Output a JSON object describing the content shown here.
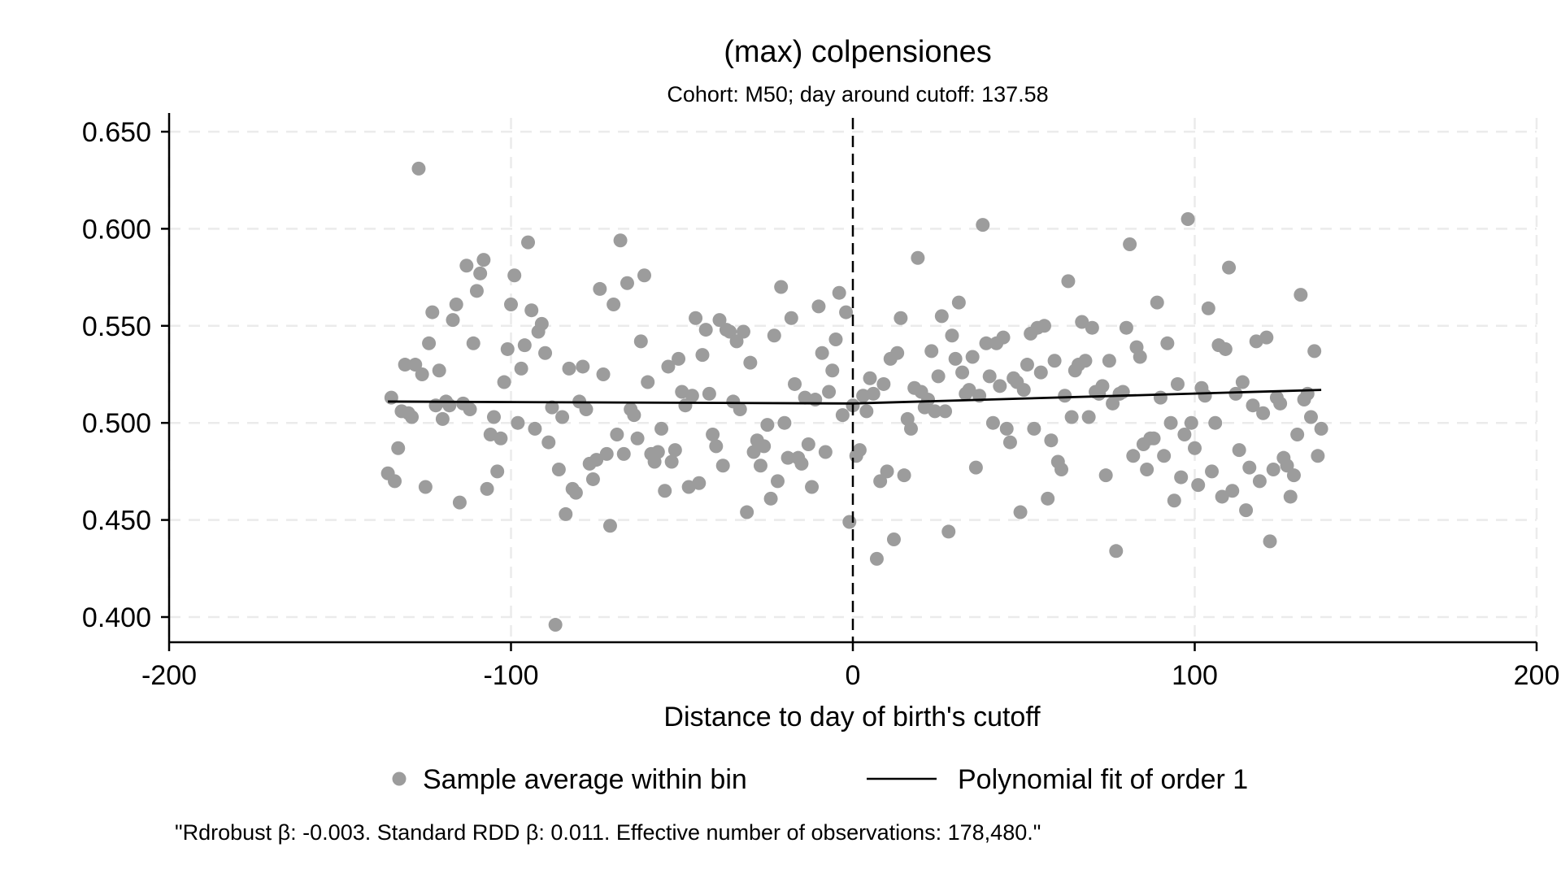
{
  "chart_data": {
    "type": "scatter",
    "title": "(max) colpensiones",
    "subtitle": "Cohort: M50; day around cutoff: 137.58",
    "xlabel": "Distance to day of birth's cutoff",
    "ylabel": "",
    "xlim": [
      -200,
      200
    ],
    "ylim": [
      0.4,
      0.65
    ],
    "x_ticks": [
      -200,
      -100,
      0,
      100,
      200
    ],
    "x_tick_labels": [
      "-200",
      "-100",
      "0",
      "100",
      "200"
    ],
    "y_ticks": [
      0.4,
      0.45,
      0.5,
      0.55,
      0.6,
      0.65
    ],
    "y_tick_labels": [
      "0.400",
      "0.450",
      "0.500",
      "0.550",
      "0.600",
      "0.650"
    ],
    "grid": true,
    "cutoff_line_x": 0,
    "legend_position": "bottom",
    "colors": {
      "points": "#9c9c9c",
      "fit": "#000000",
      "cutoff": "#000000",
      "grid": "#ebebeb"
    },
    "series": [
      {
        "name": "Sample average within bin",
        "kind": "points",
        "points": [
          [
            -136,
            0.474
          ],
          [
            -135,
            0.513
          ],
          [
            -134,
            0.47
          ],
          [
            -133,
            0.487
          ],
          [
            -132,
            0.506
          ],
          [
            -131,
            0.53
          ],
          [
            -130,
            0.505
          ],
          [
            -129,
            0.503
          ],
          [
            -128,
            0.53
          ],
          [
            -127,
            0.631
          ],
          [
            -126,
            0.525
          ],
          [
            -125,
            0.467
          ],
          [
            -124,
            0.541
          ],
          [
            -123,
            0.557
          ],
          [
            -122,
            0.509
          ],
          [
            -121,
            0.527
          ],
          [
            -120,
            0.502
          ],
          [
            -119,
            0.511
          ],
          [
            -118,
            0.509
          ],
          [
            -117,
            0.553
          ],
          [
            -116,
            0.561
          ],
          [
            -115,
            0.459
          ],
          [
            -114,
            0.51
          ],
          [
            -113,
            0.581
          ],
          [
            -112,
            0.507
          ],
          [
            -111,
            0.541
          ],
          [
            -110,
            0.568
          ],
          [
            -109,
            0.577
          ],
          [
            -108,
            0.584
          ],
          [
            -107,
            0.466
          ],
          [
            -106,
            0.494
          ],
          [
            -105,
            0.503
          ],
          [
            -104,
            0.475
          ],
          [
            -103,
            0.492
          ],
          [
            -102,
            0.521
          ],
          [
            -101,
            0.538
          ],
          [
            -100,
            0.561
          ],
          [
            -99,
            0.576
          ],
          [
            -98,
            0.5
          ],
          [
            -97,
            0.528
          ],
          [
            -96,
            0.54
          ],
          [
            -95,
            0.593
          ],
          [
            -94,
            0.558
          ],
          [
            -93,
            0.497
          ],
          [
            -92,
            0.547
          ],
          [
            -91,
            0.551
          ],
          [
            -90,
            0.536
          ],
          [
            -89,
            0.49
          ],
          [
            -88,
            0.508
          ],
          [
            -87,
            0.396
          ],
          [
            -86,
            0.476
          ],
          [
            -85,
            0.503
          ],
          [
            -84,
            0.453
          ],
          [
            -83,
            0.528
          ],
          [
            -82,
            0.466
          ],
          [
            -81,
            0.464
          ],
          [
            -80,
            0.511
          ],
          [
            -79,
            0.529
          ],
          [
            -78,
            0.507
          ],
          [
            -77,
            0.479
          ],
          [
            -76,
            0.471
          ],
          [
            -75,
            0.481
          ],
          [
            -74,
            0.569
          ],
          [
            -73,
            0.525
          ],
          [
            -72,
            0.484
          ],
          [
            -71,
            0.447
          ],
          [
            -70,
            0.561
          ],
          [
            -69,
            0.494
          ],
          [
            -68,
            0.594
          ],
          [
            -67,
            0.484
          ],
          [
            -66,
            0.572
          ],
          [
            -65,
            0.507
          ],
          [
            -64,
            0.504
          ],
          [
            -63,
            0.492
          ],
          [
            -62,
            0.542
          ],
          [
            -61,
            0.576
          ],
          [
            -60,
            0.521
          ],
          [
            -59,
            0.484
          ],
          [
            -58,
            0.48
          ],
          [
            -57,
            0.485
          ],
          [
            -56,
            0.497
          ],
          [
            -55,
            0.465
          ],
          [
            -54,
            0.529
          ],
          [
            -53,
            0.48
          ],
          [
            -52,
            0.486
          ],
          [
            -51,
            0.533
          ],
          [
            -50,
            0.516
          ],
          [
            -49,
            0.509
          ],
          [
            -48,
            0.467
          ],
          [
            -47,
            0.514
          ],
          [
            -46,
            0.554
          ],
          [
            -45,
            0.469
          ],
          [
            -44,
            0.535
          ],
          [
            -43,
            0.548
          ],
          [
            -42,
            0.515
          ],
          [
            -41,
            0.494
          ],
          [
            -40,
            0.488
          ],
          [
            -39,
            0.553
          ],
          [
            -38,
            0.478
          ],
          [
            -37,
            0.548
          ],
          [
            -36,
            0.547
          ],
          [
            -35,
            0.511
          ],
          [
            -34,
            0.542
          ],
          [
            -33,
            0.507
          ],
          [
            -32,
            0.547
          ],
          [
            -31,
            0.454
          ],
          [
            -30,
            0.531
          ],
          [
            -29,
            0.485
          ],
          [
            -28,
            0.491
          ],
          [
            -27,
            0.478
          ],
          [
            -26,
            0.488
          ],
          [
            -25,
            0.499
          ],
          [
            -24,
            0.461
          ],
          [
            -23,
            0.545
          ],
          [
            -22,
            0.47
          ],
          [
            -21,
            0.57
          ],
          [
            -20,
            0.5
          ],
          [
            -19,
            0.482
          ],
          [
            -18,
            0.554
          ],
          [
            -17,
            0.52
          ],
          [
            -16,
            0.482
          ],
          [
            -15,
            0.479
          ],
          [
            -14,
            0.513
          ],
          [
            -13,
            0.489
          ],
          [
            -12,
            0.467
          ],
          [
            -11,
            0.512
          ],
          [
            -10,
            0.56
          ],
          [
            -9,
            0.536
          ],
          [
            -8,
            0.485
          ],
          [
            -7,
            0.516
          ],
          [
            -6,
            0.527
          ],
          [
            -5,
            0.543
          ],
          [
            -4,
            0.567
          ],
          [
            -3,
            0.504
          ],
          [
            -2,
            0.557
          ],
          [
            -1,
            0.449
          ],
          [
            0,
            0.509
          ],
          [
            1,
            0.483
          ],
          [
            2,
            0.486
          ],
          [
            3,
            0.514
          ],
          [
            4,
            0.506
          ],
          [
            5,
            0.523
          ],
          [
            6,
            0.515
          ],
          [
            7,
            0.43
          ],
          [
            8,
            0.47
          ],
          [
            9,
            0.52
          ],
          [
            10,
            0.475
          ],
          [
            11,
            0.533
          ],
          [
            12,
            0.44
          ],
          [
            13,
            0.536
          ],
          [
            14,
            0.554
          ],
          [
            15,
            0.473
          ],
          [
            16,
            0.502
          ],
          [
            17,
            0.497
          ],
          [
            18,
            0.518
          ],
          [
            19,
            0.585
          ],
          [
            20,
            0.516
          ],
          [
            21,
            0.508
          ],
          [
            22,
            0.512
          ],
          [
            23,
            0.537
          ],
          [
            24,
            0.506
          ],
          [
            25,
            0.524
          ],
          [
            26,
            0.555
          ],
          [
            27,
            0.506
          ],
          [
            28,
            0.444
          ],
          [
            29,
            0.545
          ],
          [
            30,
            0.533
          ],
          [
            31,
            0.562
          ],
          [
            32,
            0.526
          ],
          [
            33,
            0.515
          ],
          [
            34,
            0.517
          ],
          [
            35,
            0.534
          ],
          [
            36,
            0.477
          ],
          [
            37,
            0.514
          ],
          [
            38,
            0.602
          ],
          [
            39,
            0.541
          ],
          [
            40,
            0.524
          ],
          [
            41,
            0.5
          ],
          [
            42,
            0.541
          ],
          [
            43,
            0.519
          ],
          [
            44,
            0.544
          ],
          [
            45,
            0.497
          ],
          [
            46,
            0.49
          ],
          [
            47,
            0.523
          ],
          [
            48,
            0.521
          ],
          [
            49,
            0.454
          ],
          [
            50,
            0.517
          ],
          [
            51,
            0.53
          ],
          [
            52,
            0.546
          ],
          [
            53,
            0.497
          ],
          [
            54,
            0.549
          ],
          [
            55,
            0.526
          ],
          [
            56,
            0.55
          ],
          [
            57,
            0.461
          ],
          [
            58,
            0.491
          ],
          [
            59,
            0.532
          ],
          [
            60,
            0.48
          ],
          [
            61,
            0.476
          ],
          [
            62,
            0.514
          ],
          [
            63,
            0.573
          ],
          [
            64,
            0.503
          ],
          [
            65,
            0.527
          ],
          [
            66,
            0.53
          ],
          [
            67,
            0.552
          ],
          [
            68,
            0.532
          ],
          [
            69,
            0.503
          ],
          [
            70,
            0.549
          ],
          [
            71,
            0.516
          ],
          [
            72,
            0.515
          ],
          [
            73,
            0.519
          ],
          [
            74,
            0.473
          ],
          [
            75,
            0.532
          ],
          [
            76,
            0.51
          ],
          [
            77,
            0.434
          ],
          [
            78,
            0.515
          ],
          [
            79,
            0.516
          ],
          [
            80,
            0.549
          ],
          [
            81,
            0.592
          ],
          [
            82,
            0.483
          ],
          [
            83,
            0.539
          ],
          [
            84,
            0.534
          ],
          [
            85,
            0.489
          ],
          [
            86,
            0.476
          ],
          [
            87,
            0.492
          ],
          [
            88,
            0.492
          ],
          [
            89,
            0.562
          ],
          [
            90,
            0.513
          ],
          [
            91,
            0.483
          ],
          [
            92,
            0.541
          ],
          [
            93,
            0.5
          ],
          [
            94,
            0.46
          ],
          [
            95,
            0.52
          ],
          [
            96,
            0.472
          ],
          [
            97,
            0.494
          ],
          [
            98,
            0.605
          ],
          [
            99,
            0.5
          ],
          [
            100,
            0.487
          ],
          [
            101,
            0.468
          ],
          [
            102,
            0.518
          ],
          [
            103,
            0.514
          ],
          [
            104,
            0.559
          ],
          [
            105,
            0.475
          ],
          [
            106,
            0.5
          ],
          [
            107,
            0.54
          ],
          [
            108,
            0.462
          ],
          [
            109,
            0.538
          ],
          [
            110,
            0.58
          ],
          [
            111,
            0.465
          ],
          [
            112,
            0.515
          ],
          [
            113,
            0.486
          ],
          [
            114,
            0.521
          ],
          [
            115,
            0.455
          ],
          [
            116,
            0.477
          ],
          [
            117,
            0.509
          ],
          [
            118,
            0.542
          ],
          [
            119,
            0.47
          ],
          [
            120,
            0.505
          ],
          [
            121,
            0.544
          ],
          [
            122,
            0.439
          ],
          [
            123,
            0.476
          ],
          [
            124,
            0.513
          ],
          [
            125,
            0.51
          ],
          [
            126,
            0.482
          ],
          [
            127,
            0.478
          ],
          [
            128,
            0.462
          ],
          [
            129,
            0.473
          ],
          [
            130,
            0.494
          ],
          [
            131,
            0.566
          ],
          [
            132,
            0.512
          ],
          [
            133,
            0.515
          ],
          [
            134,
            0.503
          ],
          [
            135,
            0.537
          ],
          [
            136,
            0.483
          ],
          [
            137,
            0.497
          ]
        ]
      },
      {
        "name": "Polynomial fit of order 1",
        "kind": "line",
        "segments": [
          [
            [
              -136,
              0.511
            ],
            [
              0,
              0.51
            ]
          ],
          [
            [
              0,
              0.51
            ],
            [
              137,
              0.517
            ]
          ]
        ]
      }
    ],
    "legend": [
      {
        "label": "Sample average within bin",
        "marker": "dot"
      },
      {
        "label": "Polynomial fit of order 1",
        "marker": "line"
      }
    ],
    "note": "\"Rdrobust β: -0.003. Standard RDD β: 0.011. Effective number of observations: 178,480.\""
  }
}
